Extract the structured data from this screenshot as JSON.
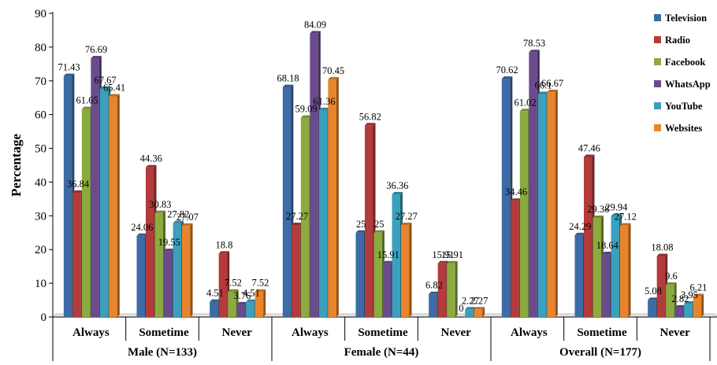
{
  "chart_data": {
    "type": "bar",
    "ylabel": "Percentage",
    "xlabel": "",
    "ylim": [
      0,
      90
    ],
    "yticks": [
      0,
      10,
      20,
      30,
      40,
      50,
      60,
      70,
      80,
      90
    ],
    "grid": false,
    "legend_position": "right",
    "groups": [
      {
        "label": "Male (N=133)",
        "categories": [
          "Always",
          "Sometime",
          "Never"
        ]
      },
      {
        "label": "Female (N=44)",
        "categories": [
          "Always",
          "Sometime",
          "Never"
        ]
      },
      {
        "label": "Overall (N=177)",
        "categories": [
          "Always",
          "Sometime",
          "Never"
        ]
      }
    ],
    "series": [
      {
        "name": "Television",
        "color": "#3C6BA5",
        "values": [
          71.43,
          24.06,
          4.51,
          68.18,
          25,
          6.82,
          70.62,
          24.29,
          5.08
        ],
        "labels": [
          "71.43",
          "24.06",
          "4.51",
          "68.18",
          "25",
          "6.82",
          "70.62",
          "24.29",
          "5.08"
        ]
      },
      {
        "name": "Radio",
        "color": "#B33B3B",
        "values": [
          36.84,
          44.36,
          18.8,
          27.27,
          56.82,
          15.91,
          34.46,
          47.46,
          18.08
        ],
        "labels": [
          "36.84",
          "44.36",
          "18.8",
          "27.27",
          "56.82",
          "15.91",
          "34.46",
          "47.46",
          "18.08"
        ]
      },
      {
        "name": "Facebook",
        "color": "#8BAA3F",
        "values": [
          61.65,
          30.83,
          7.52,
          59.09,
          25,
          15.91,
          61.02,
          29.38,
          9.6
        ],
        "labels": [
          "61.65",
          "30.83",
          "7.52",
          "59.09",
          "25",
          "15.91",
          "61.02",
          "29.38",
          "9.6"
        ]
      },
      {
        "name": "WhatsApp",
        "color": "#6A4C8C",
        "values": [
          76.69,
          19.55,
          3.76,
          84.09,
          15.91,
          0,
          78.53,
          18.64,
          2.82
        ],
        "labels": [
          "76.69",
          "19.55",
          "3.76",
          "84.09",
          "15.91",
          "0",
          "78.53",
          "18.64",
          "2.82"
        ]
      },
      {
        "name": "YouTube",
        "color": "#3AA0BD",
        "values": [
          67.67,
          27.82,
          4.51,
          61.36,
          36.36,
          2.27,
          66.1,
          29.94,
          3.95
        ],
        "labels": [
          "67.67",
          "27.82",
          "4.51",
          "61.36",
          "36.36",
          "2.27",
          "66.1",
          "29.94",
          "3.95"
        ]
      },
      {
        "name": "Websites",
        "color": "#E8852C",
        "values": [
          65.41,
          27.07,
          7.52,
          70.45,
          27.27,
          2.27,
          66.67,
          27.12,
          6.21
        ],
        "labels": [
          "65.41",
          "27.07",
          "7.52",
          "70.45",
          "27.27",
          "2.27",
          "66.67",
          "27.12",
          "6.21"
        ]
      }
    ]
  }
}
